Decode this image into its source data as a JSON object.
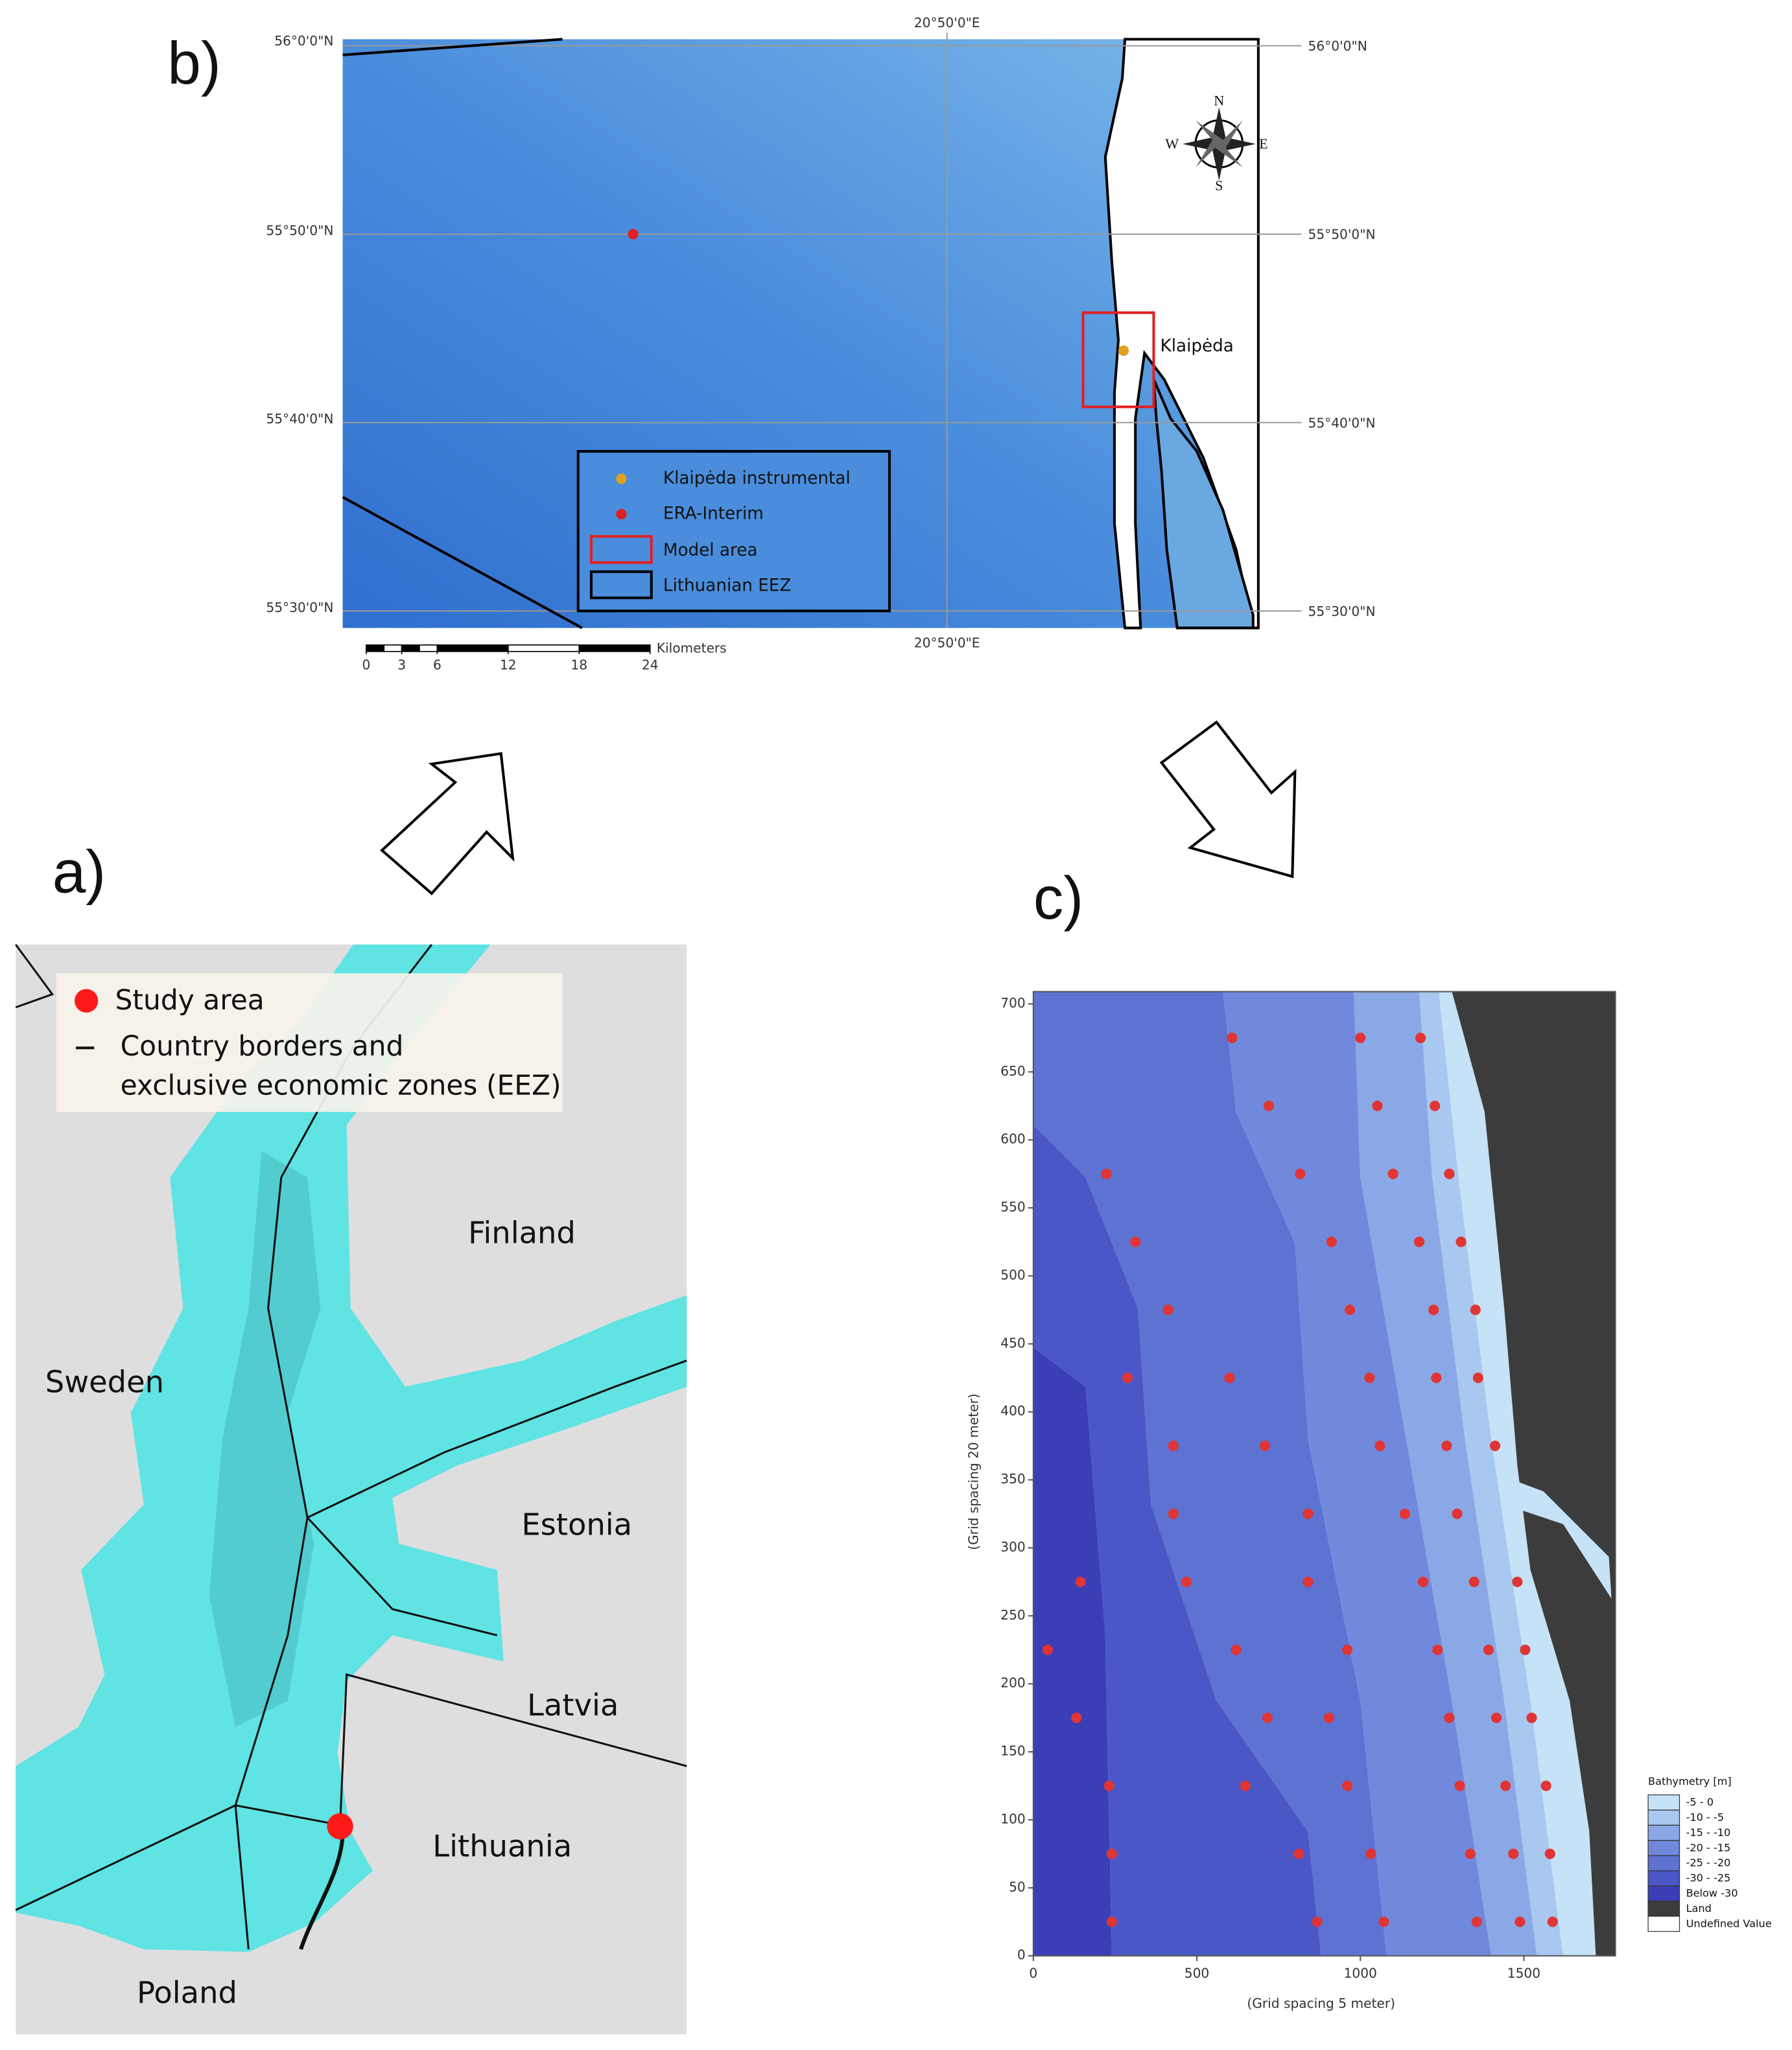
{
  "panels": {
    "b": {
      "label": "b)",
      "lon_labels": [
        "20°50'0\"E",
        "20°50'0\"E"
      ],
      "lat_left": [
        "56°0'0\"N",
        "55°50'0\"N",
        "55°40'0\"N",
        "55°30'0\"N"
      ],
      "lat_right": [
        "56°0'0\"N",
        "55°50'0\"N",
        "55°40'0\"N",
        "55°30'0\"N"
      ],
      "place": "Klaipėda",
      "compass": [
        "N",
        "E",
        "S",
        "W"
      ],
      "legend": [
        "Klaipėda instrumental",
        "ERA-Interim",
        "Model area",
        "Lithuanian EEZ"
      ],
      "scale": {
        "ticks": [
          0,
          3,
          6,
          12,
          18,
          24
        ],
        "unit": "Kilometers"
      }
    },
    "a": {
      "label": "a)",
      "legend": [
        "Study area",
        "Country borders and",
        "exclusive economic zones (EEZ)"
      ],
      "countries": [
        "Finland",
        "Sweden",
        "Estonia",
        "Latvia",
        "Lithuania",
        "Poland"
      ]
    },
    "c": {
      "label": "c)",
      "xlabel": "(Grid spacing 5 meter)",
      "ylabel": "(Grid spacing 20 meter)",
      "xlim": [
        0,
        1780
      ],
      "ylim": [
        0,
        709
      ],
      "xticks": [
        0,
        500,
        1000,
        1500
      ],
      "yticks": [
        0,
        50,
        100,
        150,
        200,
        250,
        300,
        350,
        400,
        450,
        500,
        550,
        600,
        650,
        700
      ],
      "legend_title": "Bathymetry [m]",
      "legend": [
        {
          "label": "-5 -  0",
          "color": "#c6e2f7"
        },
        {
          "label": "-10 -  -5",
          "color": "#a8c8f0"
        },
        {
          "label": "-15 - -10",
          "color": "#8ba8e6"
        },
        {
          "label": "-20 - -15",
          "color": "#7189dc"
        },
        {
          "label": "-25 - -20",
          "color": "#5e72d2"
        },
        {
          "label": "-30 - -25",
          "color": "#4b57c6"
        },
        {
          "label": "Below -30",
          "color": "#3a3fb6"
        },
        {
          "label": "Land",
          "color": "#3c3c3c"
        },
        {
          "label": "Undefined Value",
          "color": "#ffffff"
        }
      ],
      "point_color": "#e03535",
      "points": {
        "x": [
          608,
          1000,
          1184,
          720,
          1052,
          1228,
          224,
          816,
          1100,
          1272,
          312,
          912,
          1180,
          1308,
          412,
          968,
          1224,
          1352,
          288,
          600,
          1028,
          1232,
          1360,
          428,
          708,
          1060,
          1264,
          1412,
          428,
          840,
          1136,
          1296,
          144,
          468,
          840,
          1192,
          1348,
          1480,
          44,
          620,
          960,
          1236,
          1392,
          1504,
          132,
          716,
          904,
          1272,
          1416,
          1524,
          232,
          648,
          960,
          1304,
          1444,
          1568,
          240,
          812,
          1032,
          1336,
          1468,
          1580,
          240,
          868,
          1072,
          1356,
          1488,
          1588
        ],
        "y": [
          675,
          675,
          675,
          625,
          625,
          625,
          575,
          575,
          575,
          575,
          525,
          525,
          525,
          525,
          475,
          475,
          475,
          475,
          425,
          425,
          425,
          425,
          425,
          375,
          375,
          375,
          375,
          375,
          325,
          325,
          325,
          325,
          275,
          275,
          275,
          275,
          275,
          275,
          225,
          225,
          225,
          225,
          225,
          225,
          175,
          175,
          175,
          175,
          175,
          175,
          125,
          125,
          125,
          125,
          125,
          125,
          75,
          75,
          75,
          75,
          75,
          75,
          25,
          25,
          25,
          25,
          25,
          25
        ]
      }
    }
  }
}
